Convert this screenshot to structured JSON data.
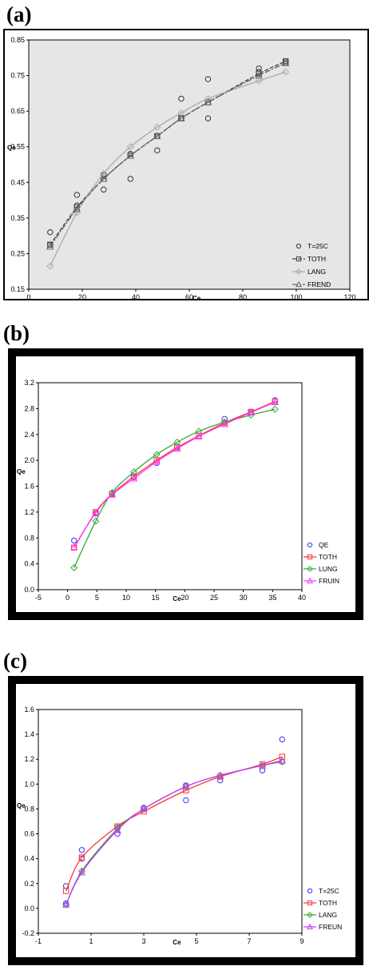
{
  "panels": {
    "a": {
      "letter": "(a)"
    },
    "b": {
      "letter": "(b)"
    },
    "c": {
      "letter": "(c)"
    }
  },
  "chart_data": [
    {
      "id": "a",
      "type": "line",
      "xlabel": "Ce",
      "ylabel": "Qe",
      "xlim": [
        0,
        120
      ],
      "ylim": [
        0.15,
        0.85
      ],
      "xticks": [
        "0",
        "20",
        "40",
        "60",
        "80",
        "100",
        "120"
      ],
      "yticks": [
        "0.15",
        "0.25",
        "0.35",
        "0.45",
        "0.55",
        "0.65",
        "0.75",
        "0.85"
      ],
      "grid": false,
      "legend_position": "right",
      "plot_background": "#e6e6e6",
      "series": [
        {
          "name": "T=25C",
          "style": "points",
          "marker": "circle",
          "color": "#333333",
          "x": [
            8,
            8,
            18,
            18,
            28,
            28,
            38,
            38,
            48,
            48,
            57,
            57,
            67,
            67,
            86,
            86,
            96,
            96
          ],
          "y": [
            0.31,
            0.275,
            0.415,
            0.385,
            0.43,
            0.47,
            0.46,
            0.53,
            0.54,
            0.58,
            0.685,
            0.63,
            0.74,
            0.63,
            0.77,
            0.76,
            0.79,
            0.785
          ]
        },
        {
          "name": "TOTH",
          "style": "line",
          "marker": "square",
          "color": "#444444",
          "x": [
            8,
            18,
            28,
            38,
            48,
            57,
            67,
            86,
            96
          ],
          "y": [
            0.275,
            0.38,
            0.46,
            0.525,
            0.58,
            0.63,
            0.675,
            0.755,
            0.79
          ]
        },
        {
          "name": "LANG",
          "style": "line",
          "marker": "diamond",
          "color": "#aaaaaa",
          "x": [
            8,
            18,
            28,
            38,
            48,
            57,
            67,
            86,
            96
          ],
          "y": [
            0.215,
            0.365,
            0.475,
            0.55,
            0.605,
            0.645,
            0.685,
            0.735,
            0.76
          ]
        },
        {
          "name": "FREND",
          "style": "line",
          "marker": "triangle",
          "color": "#666666",
          "x": [
            8,
            18,
            28,
            38,
            48,
            57,
            67,
            86,
            96
          ],
          "y": [
            0.27,
            0.375,
            0.46,
            0.525,
            0.58,
            0.63,
            0.675,
            0.75,
            0.785
          ]
        }
      ]
    },
    {
      "id": "b",
      "type": "line",
      "xlabel": "Ce",
      "ylabel": "Qe",
      "xlim": [
        -5,
        40
      ],
      "ylim": [
        0.0,
        3.2
      ],
      "xticks": [
        "-5",
        "0",
        "5",
        "10",
        "15",
        "20",
        "25",
        "30",
        "35",
        "40"
      ],
      "yticks": [
        "0.0",
        "0.4",
        "0.8",
        "1.2",
        "1.6",
        "2.0",
        "2.4",
        "2.8",
        "3.2"
      ],
      "grid": false,
      "legend_position": "right",
      "plot_background": "#ffffff",
      "series": [
        {
          "name": "QE",
          "style": "points",
          "marker": "circle",
          "color": "#3333ff",
          "x": [
            1.1,
            4.8,
            7.6,
            11.3,
            15.2,
            18.7,
            26.8,
            31.3,
            35.4
          ],
          "y": [
            0.76,
            1.18,
            1.49,
            1.74,
            1.96,
            2.21,
            2.64,
            2.74,
            2.93
          ]
        },
        {
          "name": "TOTH",
          "style": "line",
          "marker": "square",
          "color": "#ff3333",
          "x": [
            1.1,
            4.8,
            7.6,
            11.3,
            15.2,
            18.7,
            22.4,
            26.8,
            31.3,
            35.4
          ],
          "y": [
            0.65,
            1.2,
            1.48,
            1.75,
            2.0,
            2.2,
            2.38,
            2.58,
            2.75,
            2.91
          ]
        },
        {
          "name": "LUNG",
          "style": "line",
          "marker": "diamond",
          "color": "#33aa33",
          "x": [
            1.1,
            4.8,
            7.6,
            11.3,
            15.2,
            18.7,
            22.4,
            26.8,
            31.3,
            35.4
          ],
          "y": [
            0.34,
            1.06,
            1.5,
            1.82,
            2.09,
            2.28,
            2.45,
            2.59,
            2.7,
            2.79
          ]
        },
        {
          "name": "FRUIN",
          "style": "line",
          "marker": "triangle",
          "color": "#ff33ff",
          "x": [
            1.1,
            4.8,
            7.6,
            11.3,
            15.2,
            18.7,
            22.4,
            26.8,
            31.3,
            35.4
          ],
          "y": [
            0.66,
            1.19,
            1.47,
            1.72,
            1.98,
            2.18,
            2.37,
            2.56,
            2.74,
            2.9
          ]
        }
      ]
    },
    {
      "id": "c",
      "type": "line",
      "xlabel": "Ce",
      "ylabel": "Qe",
      "xlim": [
        -1,
        9
      ],
      "ylim": [
        -0.2,
        1.6
      ],
      "xticks": [
        "-1",
        "1",
        "3",
        "5",
        "7",
        "9"
      ],
      "yticks": [
        "-0.2",
        "0.0",
        "0.2",
        "0.4",
        "0.6",
        "0.8",
        "1.0",
        "1.2",
        "1.4",
        "1.6"
      ],
      "grid": false,
      "legend_position": "right",
      "plot_background": "#ffffff",
      "series": [
        {
          "name": "T=25C",
          "style": "points",
          "marker": "circle",
          "color": "#3333ff",
          "x": [
            0.05,
            0.05,
            0.65,
            0.65,
            2.0,
            2.0,
            3.0,
            4.6,
            4.6,
            5.9,
            7.5,
            8.25,
            8.25
          ],
          "y": [
            0.18,
            0.04,
            0.47,
            0.4,
            0.6,
            0.65,
            0.81,
            0.87,
            0.99,
            1.03,
            1.11,
            1.36,
            1.18
          ]
        },
        {
          "name": "TOTH",
          "style": "line",
          "marker": "square",
          "color": "#ff3333",
          "x": [
            0.05,
            0.65,
            2.0,
            3.0,
            4.6,
            5.9,
            7.5,
            8.25
          ],
          "y": [
            0.14,
            0.41,
            0.66,
            0.78,
            0.95,
            1.06,
            1.16,
            1.22
          ]
        },
        {
          "name": "LANG",
          "style": "line",
          "marker": "diamond",
          "color": "#33aa33",
          "x": [
            0.05,
            0.65,
            2.0,
            3.0,
            4.6,
            5.9,
            7.5,
            8.25
          ],
          "y": [
            0.03,
            0.3,
            0.64,
            0.8,
            0.98,
            1.07,
            1.15,
            1.18
          ]
        },
        {
          "name": "FREUN",
          "style": "line",
          "marker": "triangle",
          "color": "#cc33ff",
          "x": [
            0.05,
            0.65,
            2.0,
            3.0,
            4.6,
            5.9,
            7.5,
            8.25
          ],
          "y": [
            0.03,
            0.29,
            0.63,
            0.8,
            0.98,
            1.07,
            1.15,
            1.19
          ]
        }
      ]
    }
  ]
}
